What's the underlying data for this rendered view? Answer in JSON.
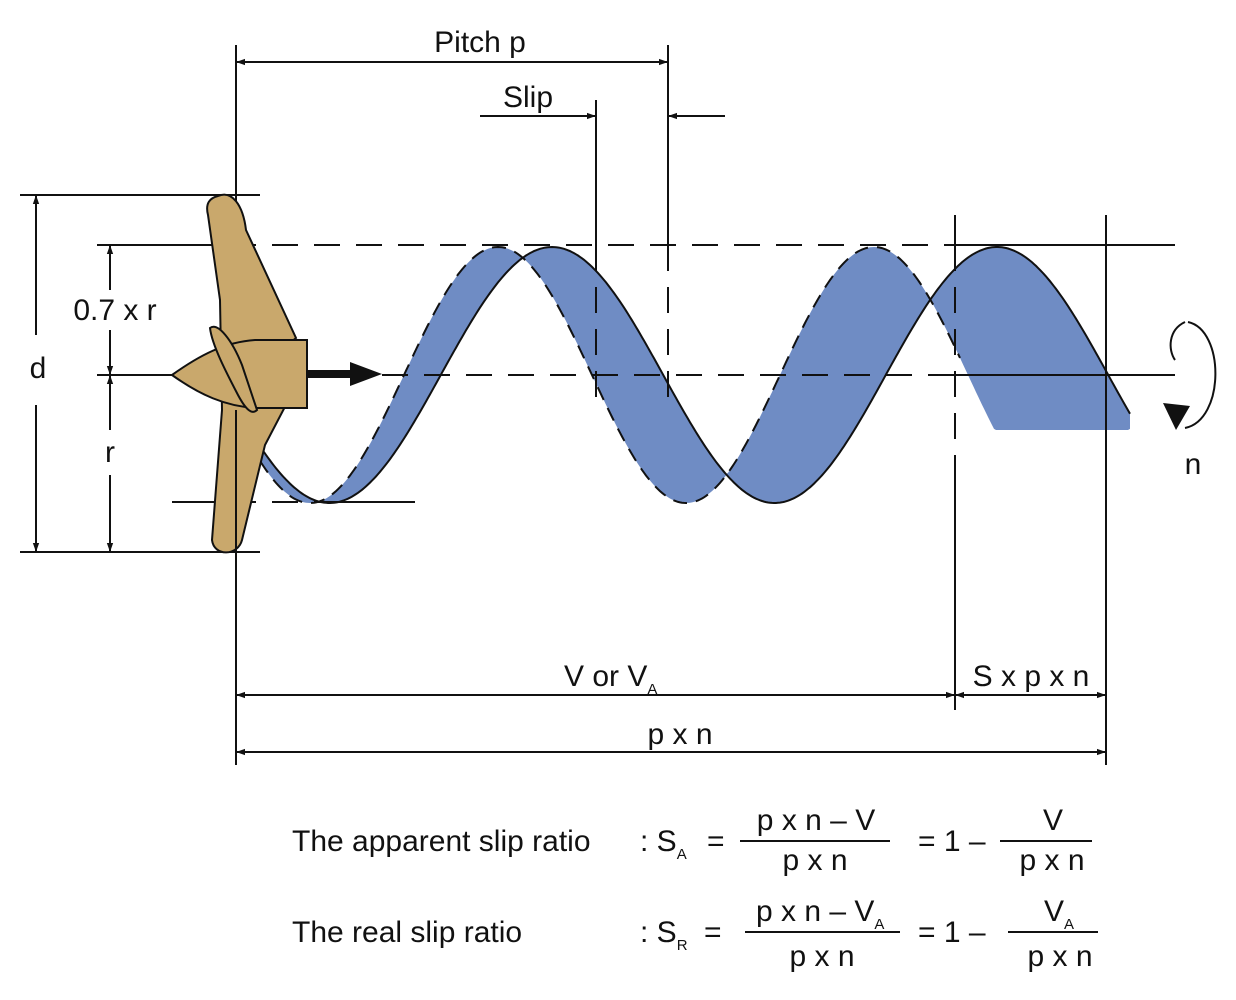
{
  "labels": {
    "pitch": "Pitch p",
    "slip": "Slip",
    "seven_r": "0.7 x r",
    "d": "d",
    "r": "r",
    "n": "n",
    "v_or": "V or V",
    "v_sub": "A",
    "s_p_n": "S x p x n",
    "p_x_n": "p x n"
  },
  "formulas": {
    "apparent": {
      "text": "The apparent slip ratio",
      "colon": ": S",
      "sub": "A",
      "eq": "=",
      "num": "p x n – V",
      "den": "p x n",
      "one_minus": "= 1 –",
      "num2": "V",
      "den2": "p x n"
    },
    "real": {
      "text": "The real slip ratio",
      "colon": ": S",
      "sub": "R",
      "eq": "=",
      "num": "p x n – V",
      "num_sub": "A",
      "den": "p x n",
      "one_minus": "= 1 –",
      "num2": "V",
      "num2_sub": "A",
      "den2": "p x n"
    }
  },
  "colors": {
    "band": "#6f8cc4",
    "propeller": "#c9a86c",
    "ink": "#111111"
  }
}
